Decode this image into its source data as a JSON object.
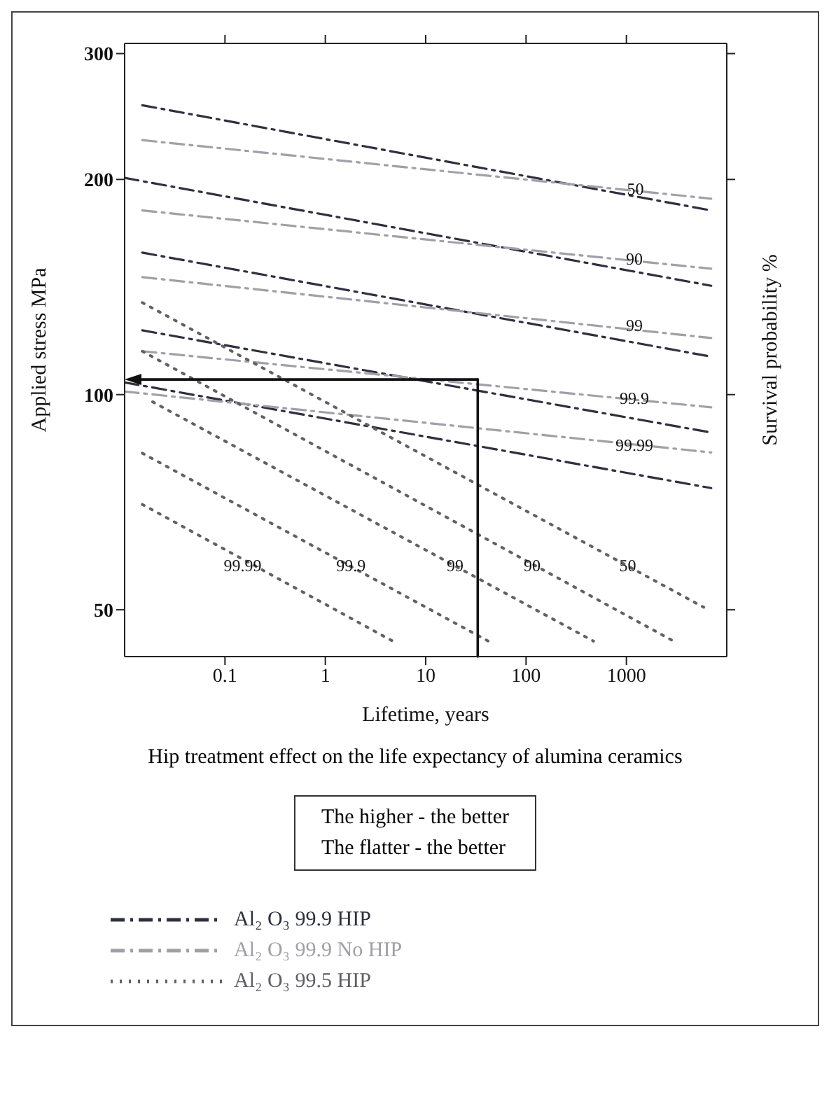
{
  "chart_data": {
    "type": "line",
    "title": "Hip treatment effect on the life expectancy of alumina ceramics",
    "xlabel": "Lifetime, years",
    "ylabel": "Applied stress MPa",
    "y2label": "Survival probability  %",
    "log": "xy",
    "xlim": [
      0.01,
      10000
    ],
    "xticks": [
      0.1,
      1,
      10,
      100,
      1000
    ],
    "ylim": [
      43,
      310
    ],
    "yticks": [
      50,
      100,
      200,
      300
    ],
    "legend": "bottom",
    "series": [
      {
        "name": "Al₂ O₃ 99.9  HIP",
        "color": "#2e3040",
        "line_style": "dashed",
        "x": [
          0.015,
          7000
        ],
        "values": [
          254,
          181
        ]
      },
      {
        "color": "#2e3040",
        "line_style": "dashed",
        "x": [
          0.01,
          7000
        ],
        "values": [
          201,
          142
        ]
      },
      {
        "color": "#2e3040",
        "line_style": "dashed",
        "x": [
          0.015,
          7000
        ],
        "values": [
          158,
          113
        ]
      },
      {
        "color": "#2e3040",
        "line_style": "dashed",
        "x": [
          0.015,
          7000
        ],
        "values": [
          123,
          88.5
        ]
      },
      {
        "color": "#2e3040",
        "line_style": "dashed",
        "x": [
          0.01,
          7000
        ],
        "values": [
          104,
          74
        ]
      },
      {
        "name": "Al₂ O₃ 99.9  No HIP",
        "color": "#a0a0a8",
        "line_style": "dashed",
        "x": [
          0.015,
          7000
        ],
        "values": [
          227,
          188
        ]
      },
      {
        "color": "#a0a0a8",
        "line_style": "dashed",
        "x": [
          0.015,
          7000
        ],
        "values": [
          181,
          150
        ]
      },
      {
        "color": "#a0a0a8",
        "line_style": "dashed",
        "x": [
          0.015,
          7000
        ],
        "values": [
          146,
          120
        ]
      },
      {
        "color": "#a0a0a8",
        "line_style": "dashed",
        "x": [
          0.015,
          7000
        ],
        "values": [
          115,
          96
        ]
      },
      {
        "color": "#a0a0a8",
        "line_style": "dashed",
        "x": [
          0.01,
          7000
        ],
        "values": [
          101,
          83
        ]
      },
      {
        "name": "Al₂ O₃ 99.5  HIP",
        "color": "#606068",
        "line_style": "dotted",
        "x": [
          0.015,
          5900
        ],
        "values": [
          134.5,
          50.4
        ]
      },
      {
        "color": "#606068",
        "line_style": "dotted",
        "x": [
          0.015,
          2950
        ],
        "values": [
          115,
          45.2
        ]
      },
      {
        "color": "#606068",
        "line_style": "dotted",
        "x": [
          0.019,
          470
        ],
        "values": [
          97.7,
          45.2
        ]
      },
      {
        "color": "#606068",
        "line_style": "dotted",
        "x": [
          0.015,
          42
        ],
        "values": [
          82.8,
          45.2
        ]
      },
      {
        "color": "#606068",
        "line_style": "dotted",
        "x": [
          0.015,
          4.7
        ],
        "values": [
          70.2,
          45.2
        ]
      }
    ],
    "ref_lines": [
      {
        "axis": "x",
        "value": 33,
        "color": "#111111"
      },
      {
        "axis": "y",
        "value": 105,
        "color": "#111111"
      }
    ],
    "annotations": [
      "The higher - the better",
      "The flatter - the better",
      {
        "text": "50",
        "x": 1230,
        "y": 194
      },
      {
        "text": "90",
        "x": 1200,
        "y": 155
      },
      {
        "text": "99",
        "x": 1200,
        "y": 125
      },
      {
        "text": "99.9",
        "x": 1200,
        "y": 99
      },
      {
        "text": "99.99",
        "x": 1200,
        "y": 85
      },
      {
        "text": "99.99",
        "x": 0.15,
        "y": 57.7
      },
      {
        "text": "99.9",
        "x": 1.8,
        "y": 57.7
      },
      {
        "text": "99",
        "x": 19.6,
        "y": 57.7
      },
      {
        "text": "90",
        "x": 115,
        "y": 57.7
      },
      {
        "text": "50",
        "x": 1030,
        "y": 57.7
      }
    ]
  }
}
